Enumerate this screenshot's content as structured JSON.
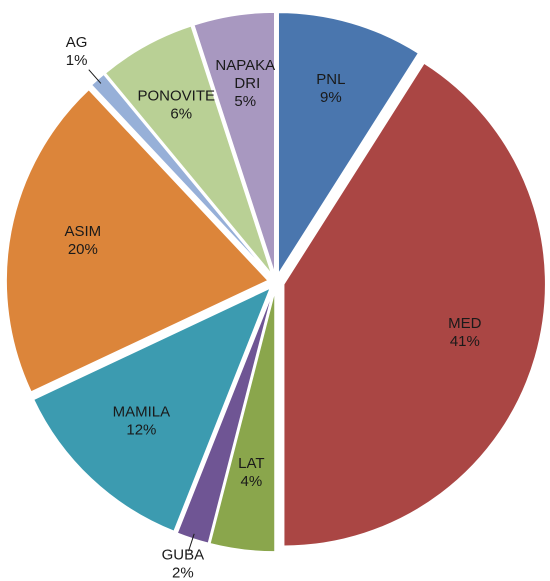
{
  "chart_data": {
    "type": "pie",
    "categories": [
      "PNL",
      "MED",
      "LAT",
      "GUBA",
      "MAMILA",
      "ASIM",
      "AG",
      "PONOVITEV",
      "NAPAKA DRI"
    ],
    "values": [
      9,
      41,
      4,
      2,
      12,
      20,
      1,
      6,
      5
    ],
    "value_labels": [
      "9%",
      "41%",
      "4%",
      "2%",
      "12%",
      "20%",
      "1%",
      "6%",
      "5%"
    ],
    "colors": [
      "#4a76ae",
      "#aa4644",
      "#8aa64c",
      "#6f5594",
      "#3c9bb0",
      "#dc853a",
      "#97b0d8",
      "#b9d095",
      "#a898c0"
    ]
  }
}
